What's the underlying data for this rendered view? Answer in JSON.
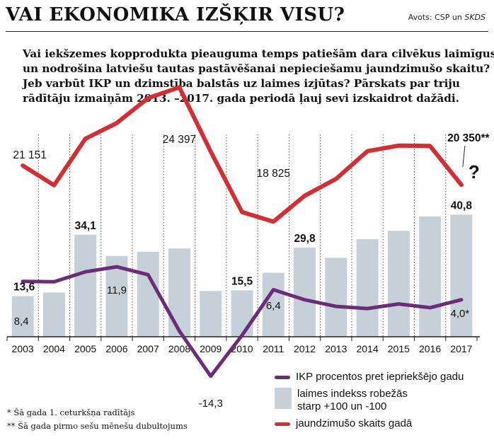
{
  "header": {
    "title": "VAI EKONOMIKA IZŠĶIR VISU?",
    "source_prefix": "Avots: CSP un ",
    "source_italic": "SKDS"
  },
  "intro_lines": [
    "Vai iekšzemes kopprodukta pieauguma temps patiešām dara cilvēkus laimīgus",
    "un nodrošina latviešu tautas pastāvēšanai nepieciešamu jaundzimušo skaitu?",
    "Jeb varbūt IKP un dzimstība balstās uz laimes izjūtas? Pārskats par triju",
    "rādītāju izmaiņām 2013. –2017. gada periodā ļauj sevi izskaidrot dažādi."
  ],
  "chart_data": {
    "type": "bar+line",
    "categories": [
      "2003",
      "2004",
      "2005",
      "2006",
      "2007",
      "2008",
      "2009",
      "2010",
      "2011",
      "2012",
      "2013",
      "2014",
      "2015",
      "2016",
      "2017"
    ],
    "series": [
      {
        "name": "laimes indekss robežās starp +100 un -100",
        "type": "bar",
        "color": "#c5d0d8",
        "values": [
          13.6,
          14.8,
          34.1,
          27.0,
          28.4,
          29.5,
          15.3,
          15.5,
          21.4,
          29.8,
          26.4,
          32.6,
          35.4,
          40.2,
          40.8
        ]
      },
      {
        "name": "IKP procentos pret iepriekšējo gadu",
        "type": "line",
        "color": "#6b2c78",
        "values": [
          8.4,
          8.3,
          10.7,
          11.9,
          10.0,
          -3.5,
          -14.3,
          -4.5,
          6.4,
          4.0,
          2.4,
          1.9,
          3.0,
          2.1,
          4.0
        ]
      },
      {
        "name": "jaundzimušo skaits gadā",
        "type": "line",
        "color": "#d12e36",
        "values": [
          21151,
          20334,
          22264,
          22914,
          23948,
          24397,
          21732,
          19219,
          18825,
          19897,
          20596,
          21746,
          21979,
          21968,
          20350
        ]
      }
    ],
    "data_labels": {
      "happiness": [
        {
          "index": 0,
          "text": "13,6"
        },
        {
          "index": 2,
          "text": "34,1"
        },
        {
          "index": 7,
          "text": "15,5"
        },
        {
          "index": 9,
          "text": "29,8"
        },
        {
          "index": 14,
          "text": "40,8"
        }
      ],
      "gdp": [
        {
          "index": 0,
          "text": "8,4"
        },
        {
          "index": 3,
          "text": "11,9"
        },
        {
          "index": 6,
          "text": "-14,3"
        },
        {
          "index": 8,
          "text": "6,4"
        },
        {
          "index": 14,
          "text": "4,0*"
        }
      ],
      "births": [
        {
          "index": 0,
          "text": "21 151"
        },
        {
          "index": 5,
          "text": "24 397"
        },
        {
          "index": 8,
          "text": "18 825"
        },
        {
          "index": 14,
          "text": "20 350**"
        }
      ]
    },
    "question_mark": "?",
    "gridlines": "vertical dotted per year",
    "legend_position": "bottom-right"
  },
  "legend": {
    "gdp": "IKP procentos pret iepriekšējo gadu",
    "happiness_line1": "laimes indekss robežās",
    "happiness_line2": "starp +100 un -100",
    "births": "jaundzimušo skaits gadā"
  },
  "footnotes": {
    "note1": "* Šā gada 1. ceturkšņa radītājs",
    "note2": "** Šā gada pirmo sešu mēnešu dubultojums"
  }
}
